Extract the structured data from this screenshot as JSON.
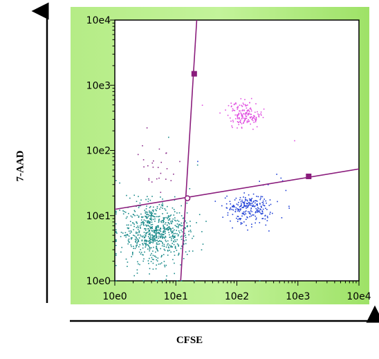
{
  "chart_data": {
    "type": "scatter",
    "xlabel": "CFSE",
    "ylabel": "7-AAD",
    "xscale": "log",
    "yscale": "log",
    "xlim": [
      1,
      10000
    ],
    "ylim": [
      1,
      10000
    ],
    "x_ticks": [
      "10e0",
      "10e1",
      "10e2",
      "10e3",
      "10e4"
    ],
    "y_ticks": [
      "10e0",
      "10e1",
      "10e2",
      "10e3",
      "10e4"
    ],
    "grid": false,
    "colors": {
      "frame_bg": "#b8ee8a",
      "plot_bg": "#ffffff",
      "gate": "#8a1c7c",
      "handle": "#8a1c7c"
    },
    "gates": {
      "vertical": {
        "points": [
          [
            12,
            1
          ],
          [
            22,
            10000
          ]
        ],
        "handle": [
          20,
          1500
        ]
      },
      "horizontal": {
        "points": [
          [
            1,
            12.5
          ],
          [
            10000,
            52
          ]
        ],
        "handle": [
          1500,
          40
        ]
      },
      "intersection": [
        15.5,
        18.5
      ]
    },
    "series": [
      {
        "color": "#1a8a8a",
        "center": [
          4.5,
          6
        ],
        "spread": [
          0.28,
          0.2
        ],
        "count": 750,
        "tail_down": true
      },
      {
        "color": "#1e3fd6",
        "center": [
          160,
          13
        ],
        "spread": [
          0.18,
          0.11
        ],
        "count": 240
      },
      {
        "color": "#e04ee0",
        "center": [
          130,
          360
        ],
        "spread": [
          0.13,
          0.1
        ],
        "count": 170
      },
      {
        "color": "#8a2a8a",
        "center": [
          5.5,
          55
        ],
        "spread": [
          0.18,
          0.2
        ],
        "count": 26
      }
    ]
  }
}
